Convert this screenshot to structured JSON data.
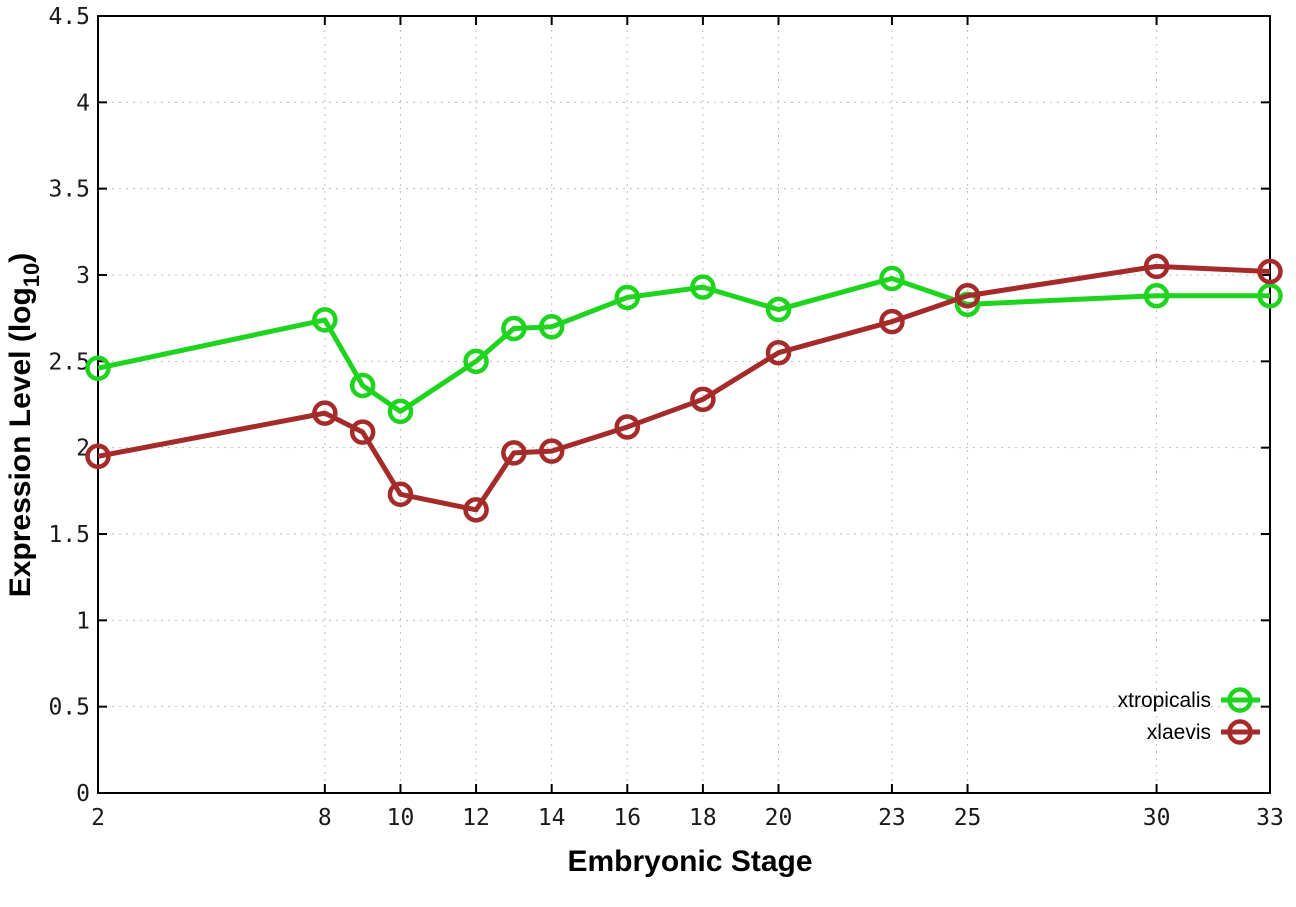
{
  "chart_data": {
    "type": "line",
    "title": "",
    "xlabel": "Embryonic Stage",
    "ylabel": "Expression Level (log10)",
    "ylabel_parts": {
      "pre": "Expression Level (log",
      "sub": "10",
      "post": ")"
    },
    "xlim": [
      2,
      33
    ],
    "ylim": [
      0,
      4.5
    ],
    "grid": true,
    "grid_color": "#bfbfbf",
    "axis_color": "#000000",
    "tick_label_color": "#1a1a1a",
    "legend_position": "bottom-right-inside",
    "marker": "open-circle",
    "x": [
      2,
      8,
      9,
      10,
      12,
      13,
      14,
      16,
      18,
      20,
      23,
      25,
      30,
      33
    ],
    "ticks": {
      "x": {
        "values": [
          2,
          8,
          10,
          12,
          14,
          16,
          18,
          20,
          23,
          25,
          30,
          33
        ],
        "labels": [
          "2",
          "8",
          "10",
          "12",
          "14",
          "16",
          "18",
          "20",
          "23",
          "25",
          "30",
          "33"
        ]
      },
      "y": {
        "values": [
          0,
          0.5,
          1,
          1.5,
          2,
          2.5,
          3,
          3.5,
          4,
          4.5
        ],
        "labels": [
          "0",
          "0.5",
          "1",
          "1.5",
          "2",
          "2.5",
          "3",
          "3.5",
          "4",
          "4.5"
        ]
      }
    },
    "series": [
      {
        "name": "xtropicalis",
        "color": "#1ed41e",
        "values": [
          2.46,
          2.74,
          2.36,
          2.21,
          2.5,
          2.69,
          2.7,
          2.87,
          2.93,
          2.8,
          2.98,
          2.83,
          2.88,
          2.88
        ]
      },
      {
        "name": "xlaevis",
        "color": "#a52a2a",
        "values": [
          1.95,
          2.2,
          2.09,
          1.73,
          1.64,
          1.97,
          1.98,
          2.12,
          2.28,
          2.55,
          2.73,
          2.88,
          3.05,
          3.02
        ]
      }
    ]
  }
}
